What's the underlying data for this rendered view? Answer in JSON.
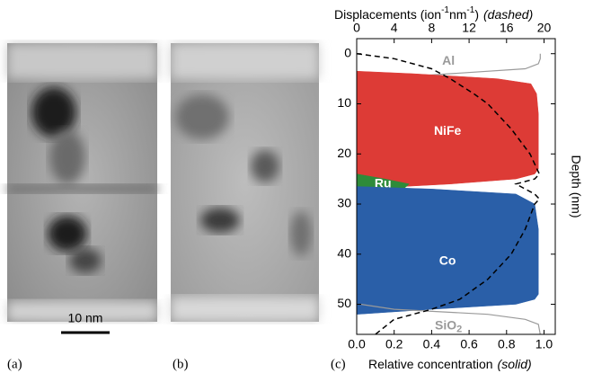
{
  "panels": [
    {
      "label": "(a)",
      "scale_bar": "10 nm"
    },
    {
      "label": "(b)"
    }
  ],
  "chart_data": {
    "type": "depth-profile",
    "label": "(c)",
    "xlabel": "Relative concentration",
    "xlabel_note": "(solid)",
    "x2label": [
      "Displacements (ion",
      "-1",
      "nm",
      "-1",
      ")"
    ],
    "x2label_note": "(dashed)",
    "ylabel": "Depth (nm)",
    "xlim": [
      0,
      1.06
    ],
    "xticks": [
      {
        "value": 0,
        "label": "0.0"
      },
      {
        "value": 0.2,
        "label": "0.2"
      },
      {
        "value": 0.4,
        "label": "0.4"
      },
      {
        "value": 0.6,
        "label": "0.6"
      },
      {
        "value": 0.8,
        "label": "0.8"
      },
      {
        "value": 1,
        "label": "1.0"
      }
    ],
    "x2lim": [
      0,
      21.2
    ],
    "x2ticks": [
      0,
      4,
      8,
      12,
      16,
      20
    ],
    "ylim": [
      -3,
      56
    ],
    "yticks": [
      0,
      10,
      20,
      30,
      40,
      50
    ],
    "series": [
      {
        "name": "Al",
        "color": "#9a9a9a",
        "fill": false,
        "depth": [
          0,
          1,
          2,
          3,
          4,
          5,
          6
        ],
        "values": [
          0.98,
          0.98,
          0.97,
          0.9,
          0.5,
          0.1,
          0.02
        ]
      },
      {
        "name": "NiFe",
        "color": "#dd3b36",
        "fill": true,
        "depth": [
          3.5,
          4,
          5,
          6,
          8,
          12,
          20,
          23,
          24,
          25,
          26,
          27
        ],
        "values": [
          0,
          0.3,
          0.75,
          0.93,
          0.96,
          0.97,
          0.97,
          0.97,
          0.95,
          0.85,
          0.5,
          0
        ]
      },
      {
        "name": "Ru",
        "color": "#2e8b3a",
        "fill": true,
        "depth": [
          24,
          25,
          26,
          27,
          28,
          29
        ],
        "values": [
          0,
          0.15,
          0.28,
          0.25,
          0.1,
          0
        ]
      },
      {
        "name": "Co",
        "color": "#2a5fa8",
        "fill": true,
        "depth": [
          26.5,
          27,
          28,
          30,
          35,
          45,
          48,
          49,
          50,
          51,
          52
        ],
        "values": [
          0,
          0.4,
          0.85,
          0.95,
          0.97,
          0.97,
          0.97,
          0.95,
          0.85,
          0.4,
          0
        ]
      },
      {
        "name": "SiO",
        "name_sub": "2",
        "color": "#9a9a9a",
        "fill": false,
        "depth": [
          50,
          51,
          52,
          53,
          54,
          56
        ],
        "values": [
          0.02,
          0.2,
          0.7,
          0.9,
          0.97,
          0.98
        ]
      }
    ],
    "displacements": {
      "axis": "x2",
      "color": "#000000",
      "style": "dashed",
      "depth": [
        0,
        1,
        2,
        3,
        5,
        8,
        10,
        15,
        20,
        24,
        25,
        26,
        27,
        28,
        29,
        30,
        35,
        40,
        45,
        49,
        51,
        53,
        56
      ],
      "values": [
        0,
        4,
        6,
        8,
        10,
        12.5,
        14,
        16.5,
        18.5,
        19.5,
        19,
        17,
        18,
        19,
        19.5,
        19,
        18,
        16.5,
        14,
        11,
        8,
        4,
        2
      ]
    }
  }
}
